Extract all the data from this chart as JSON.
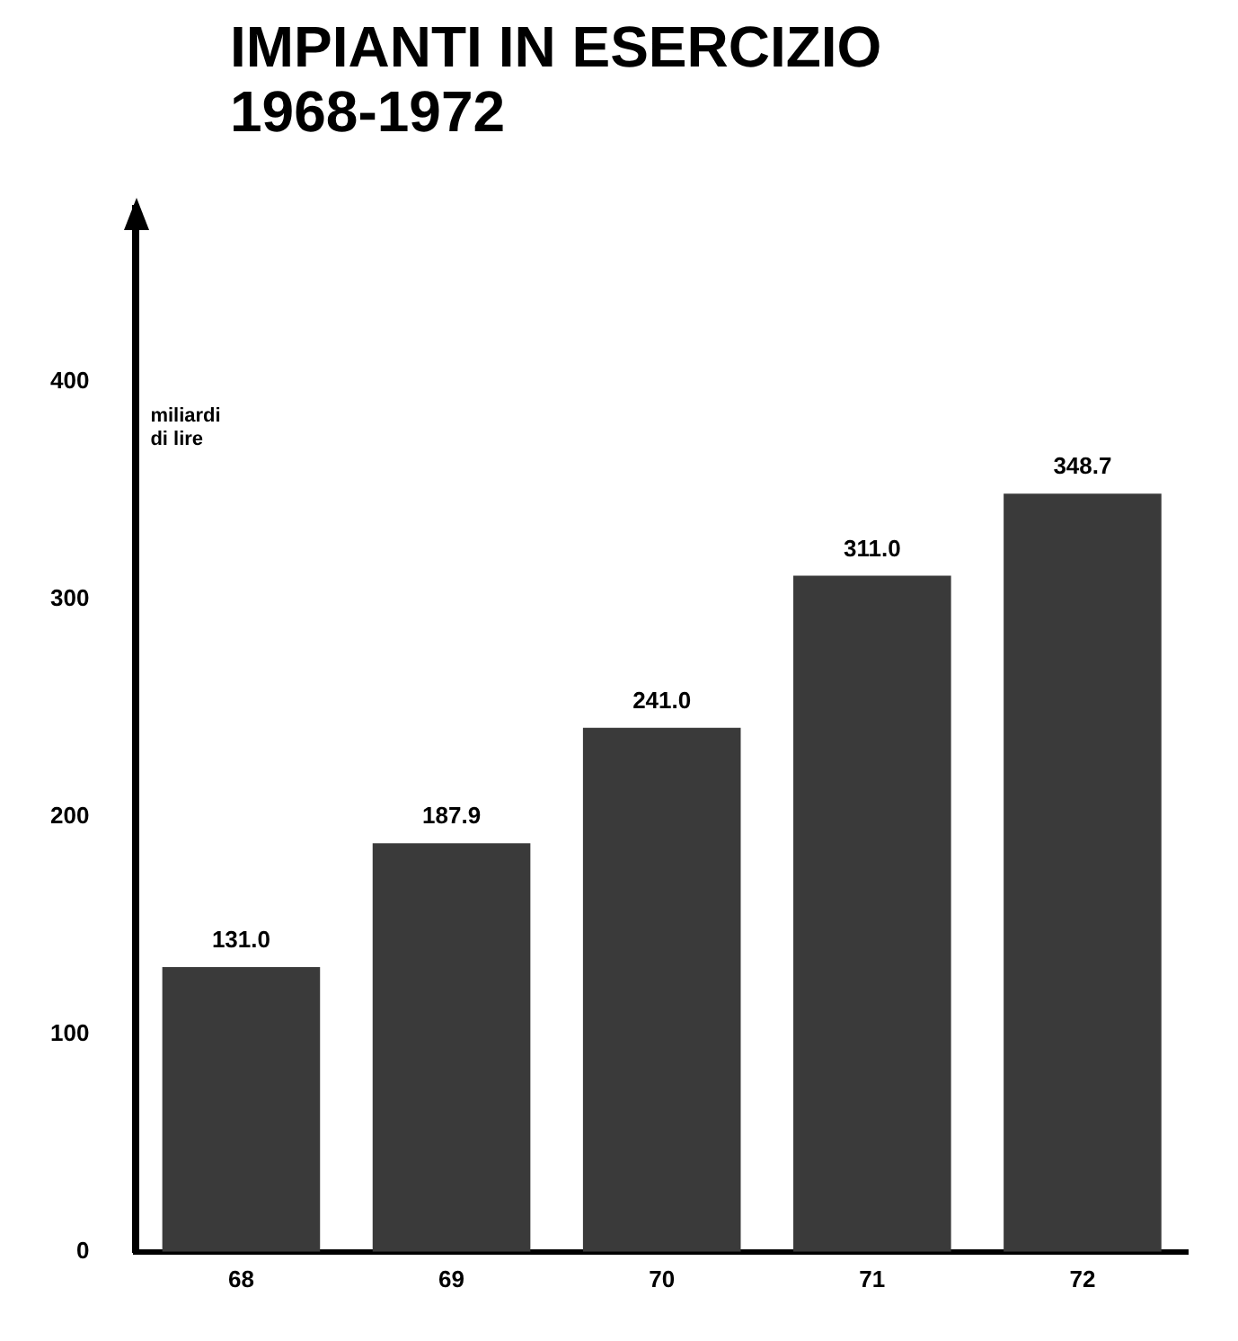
{
  "chart_data": {
    "type": "bar",
    "title": "IMPIANTI IN ESERCIZIO\n1968-1972",
    "ylabel": "miliardi\ndi lire",
    "categories": [
      "68",
      "69",
      "70",
      "71",
      "72"
    ],
    "values": [
      131.0,
      187.9,
      241.0,
      311.0,
      348.7
    ],
    "value_labels": [
      "131.0",
      "187.9",
      "241.0",
      "311.0",
      "348.7"
    ],
    "color": "#3a3a3a",
    "ylim": [
      0,
      480
    ],
    "yticks": [
      0,
      100,
      200,
      300,
      400
    ],
    "grid": false,
    "legend": false
  }
}
